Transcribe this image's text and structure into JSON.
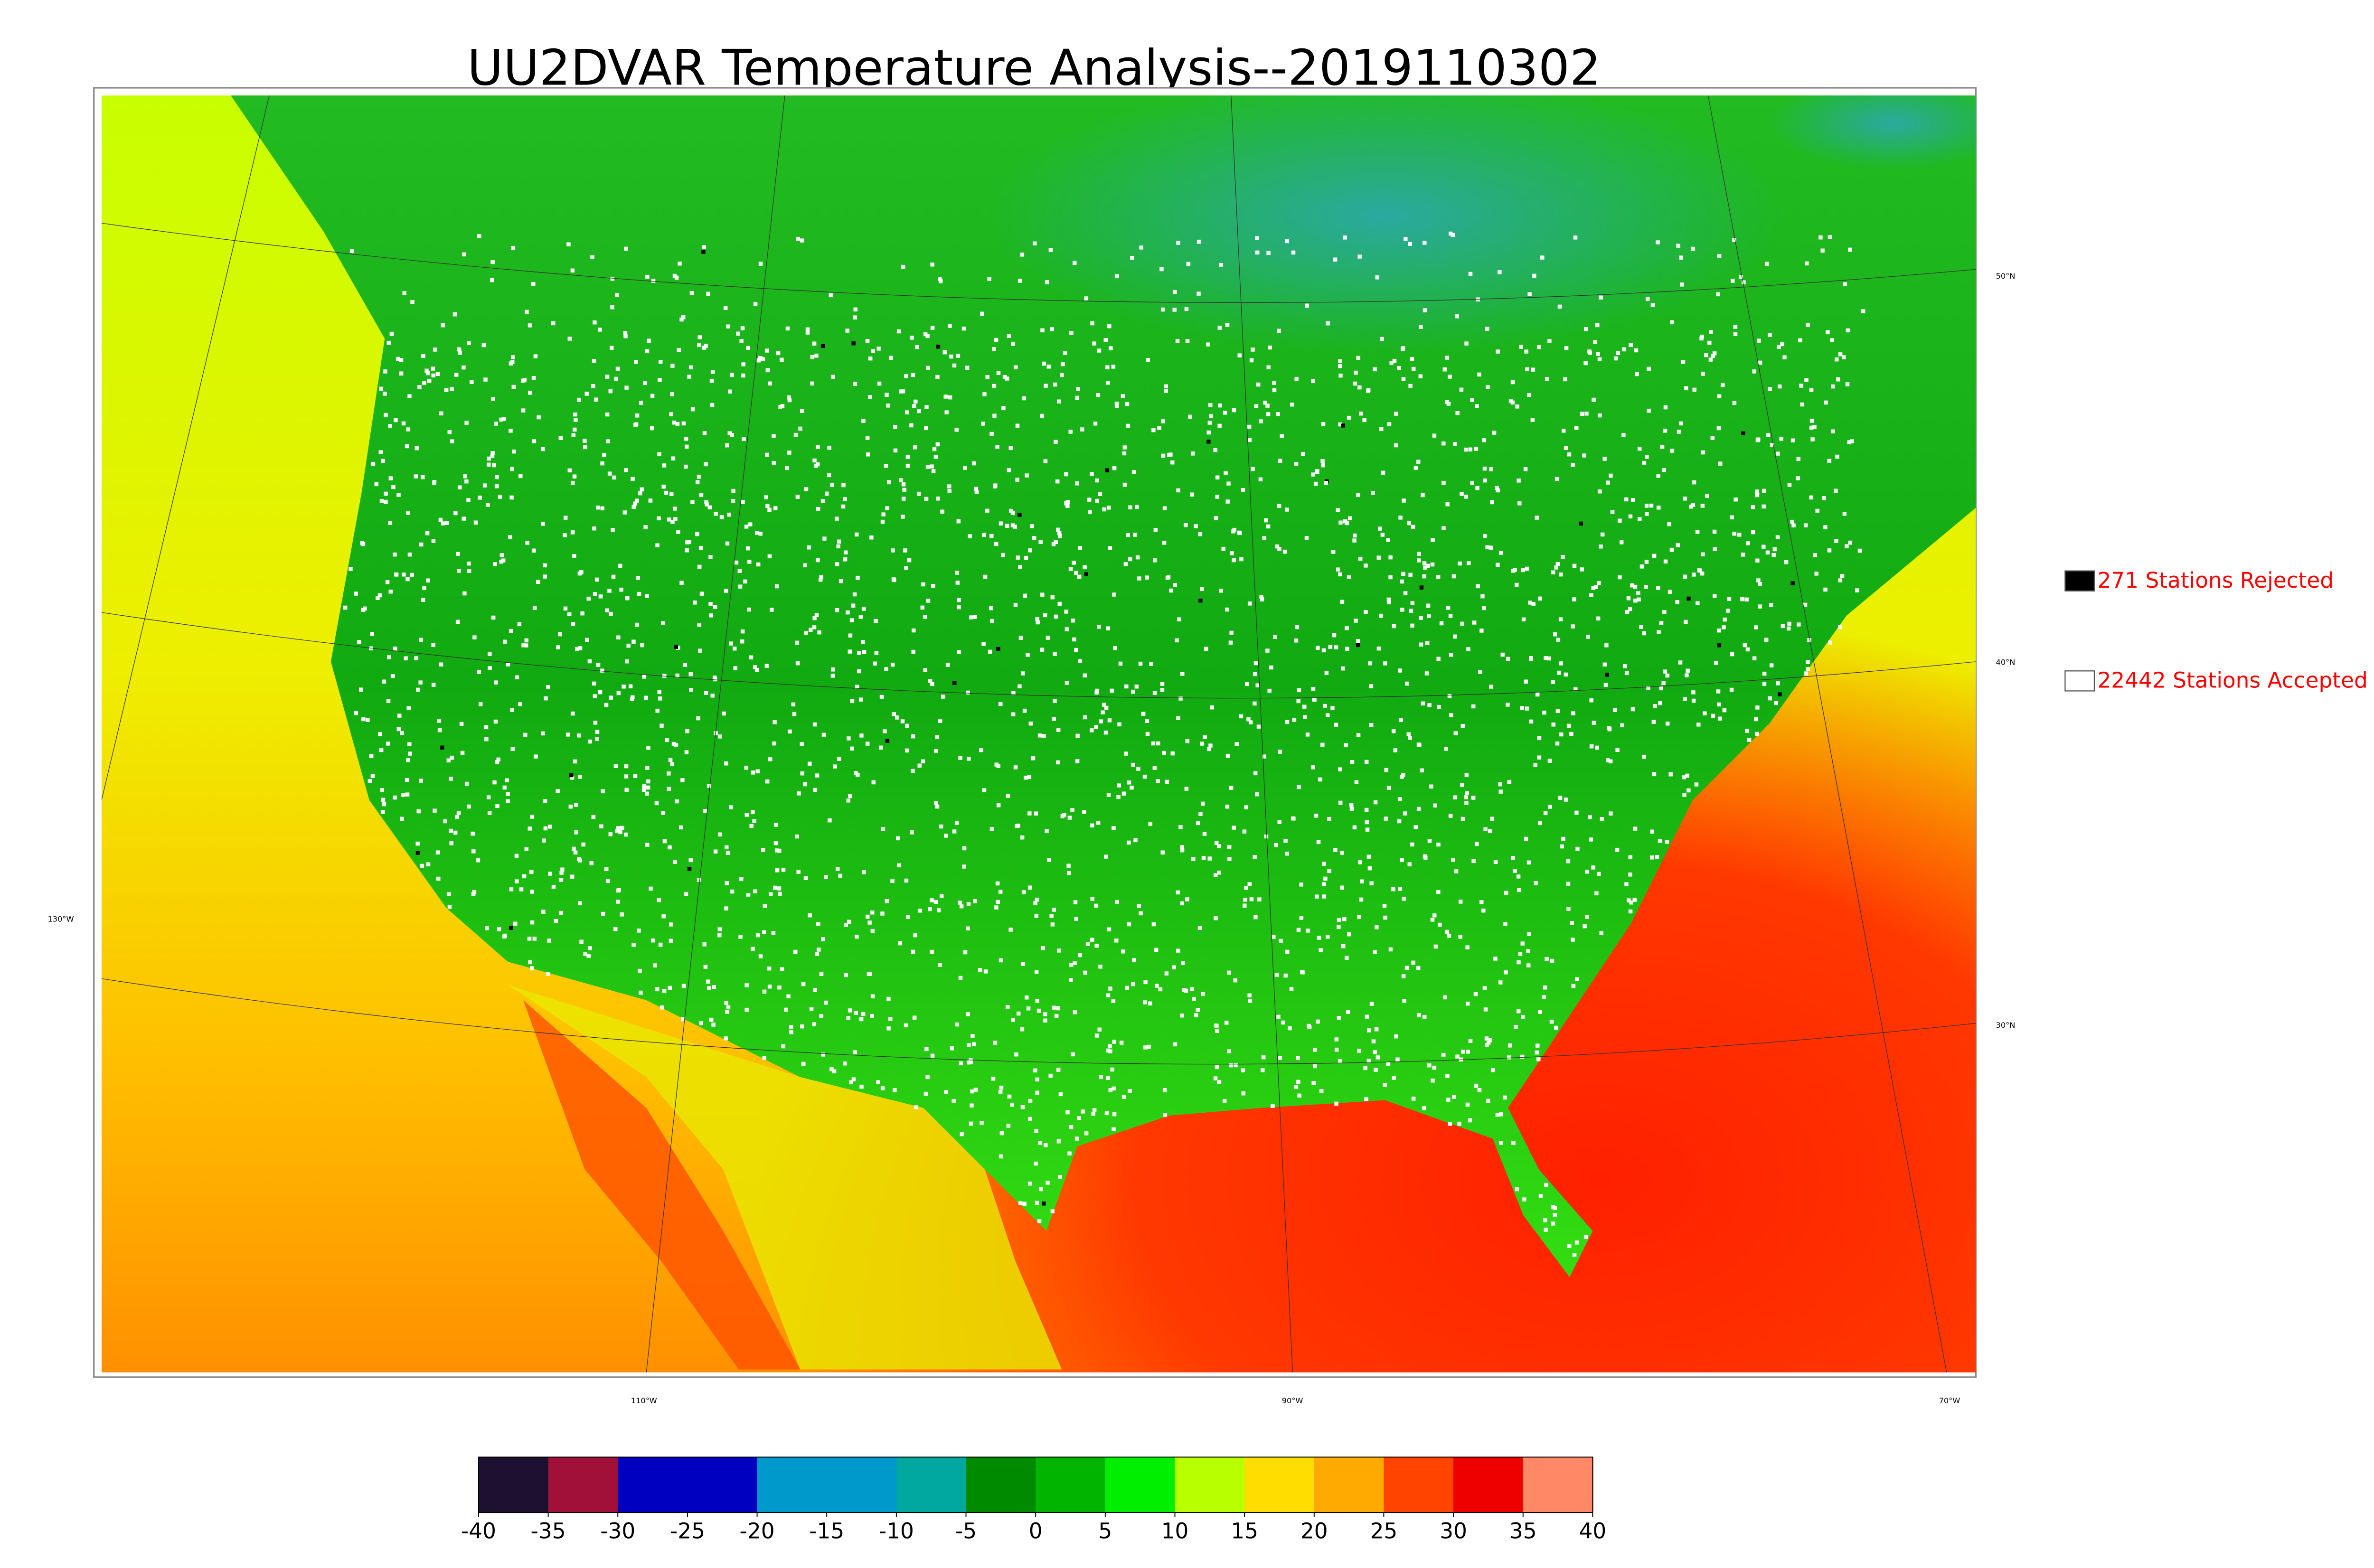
{
  "title": "UU2DVAR Temperature Analysis--2019110302",
  "legend": [
    {
      "label": "271 Stations Rejected",
      "color": "#000000"
    },
    {
      "label": "22442 Stations Accepted",
      "color": "#ffffff"
    }
  ],
  "graticule": {
    "latitudes": [
      "50°N",
      "40°N",
      "30°N"
    ],
    "longitudes": [
      "130°W",
      "110°W",
      "90°W",
      "70°W"
    ]
  },
  "colorbar": {
    "range": [
      -40,
      40
    ],
    "ticks": [
      -40,
      -35,
      -30,
      -25,
      -20,
      -15,
      -10,
      -5,
      0,
      5,
      10,
      15,
      20,
      25,
      30,
      35,
      40
    ],
    "colors": [
      "#1e1030",
      "#a01038",
      "#0000c0",
      "#0000c0",
      "#0099cc",
      "#0099cc",
      "#00a8a0",
      "#008a00",
      "#00b400",
      "#00ee00",
      "#b8ff00",
      "#ffdd00",
      "#ffaa00",
      "#ff4400",
      "#ee0000",
      "#ff8866"
    ]
  }
}
